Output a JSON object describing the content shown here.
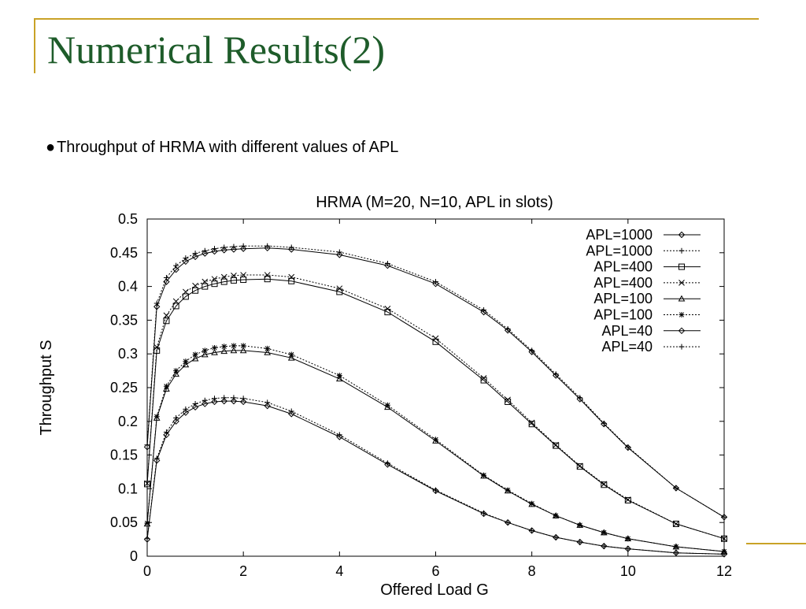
{
  "slide": {
    "title": "Numerical Results(2)",
    "bullet": "Throughput of HRMA with different values of APL",
    "accent_color": "#c9a227",
    "title_color": "#1e5c2a"
  },
  "chart_data": {
    "type": "line",
    "title": "HRMA (M=20, N=10, APL in slots)",
    "xlabel": "Offered Load G",
    "ylabel": "Throughput S",
    "xlim": [
      0,
      12
    ],
    "ylim": [
      0,
      0.5
    ],
    "xticks": [
      "0",
      "2",
      "4",
      "6",
      "8",
      "10",
      "12"
    ],
    "yticks": [
      "0",
      "0.05",
      "0.1",
      "0.15",
      "0.2",
      "0.25",
      "0.3",
      "0.35",
      "0.4",
      "0.45",
      "0.5"
    ],
    "grid": false,
    "legend_position": "top-right",
    "series": [
      {
        "name": "APL=1000",
        "marker": "diamond",
        "dash": "solid",
        "x": [
          0,
          0.2,
          0.4,
          0.6,
          0.8,
          1.0,
          1.2,
          1.4,
          1.6,
          1.8,
          2.0,
          2.5,
          3.0,
          4.0,
          5.0,
          6.0,
          7.0,
          7.5,
          8.0,
          8.5,
          9.0,
          9.5,
          10.0,
          11.0,
          12.0
        ],
        "y": [
          0.162,
          0.37,
          0.407,
          0.425,
          0.437,
          0.444,
          0.449,
          0.452,
          0.454,
          0.455,
          0.456,
          0.457,
          0.455,
          0.447,
          0.431,
          0.404,
          0.362,
          0.335,
          0.303,
          0.268,
          0.233,
          0.196,
          0.161,
          0.101,
          0.058
        ]
      },
      {
        "name": "APL=1000",
        "marker": "plus",
        "dash": "dotted",
        "x": [
          0,
          0.2,
          0.4,
          0.6,
          0.8,
          1.0,
          1.2,
          1.4,
          1.6,
          1.8,
          2.0,
          2.5,
          3.0,
          4.0,
          5.0,
          6.0,
          7.0,
          7.5,
          8.0,
          8.5,
          9.0,
          9.5,
          10.0,
          11.0,
          12.0
        ],
        "y": [
          0.165,
          0.375,
          0.413,
          0.431,
          0.442,
          0.449,
          0.453,
          0.456,
          0.458,
          0.459,
          0.46,
          0.46,
          0.458,
          0.451,
          0.434,
          0.407,
          0.365,
          0.337,
          0.305,
          0.27,
          0.235,
          0.197,
          0.162,
          0.101,
          0.058
        ]
      },
      {
        "name": "APL=400",
        "marker": "square",
        "dash": "solid",
        "x": [
          0,
          0.2,
          0.4,
          0.6,
          0.8,
          1.0,
          1.2,
          1.4,
          1.6,
          1.8,
          2.0,
          2.5,
          3.0,
          4.0,
          5.0,
          6.0,
          7.0,
          7.5,
          8.0,
          8.5,
          9.0,
          9.5,
          10.0,
          11.0,
          12.0
        ],
        "y": [
          0.107,
          0.305,
          0.349,
          0.371,
          0.385,
          0.394,
          0.4,
          0.404,
          0.407,
          0.409,
          0.41,
          0.411,
          0.408,
          0.392,
          0.362,
          0.318,
          0.261,
          0.229,
          0.196,
          0.164,
          0.133,
          0.106,
          0.083,
          0.048,
          0.026
        ]
      },
      {
        "name": "APL=400",
        "marker": "x",
        "dash": "dotted",
        "x": [
          0,
          0.2,
          0.4,
          0.6,
          0.8,
          1.0,
          1.2,
          1.4,
          1.6,
          1.8,
          2.0,
          2.5,
          3.0,
          4.0,
          5.0,
          6.0,
          7.0,
          7.5,
          8.0,
          8.5,
          9.0,
          9.5,
          10.0,
          11.0,
          12.0
        ],
        "y": [
          0.108,
          0.31,
          0.357,
          0.378,
          0.392,
          0.401,
          0.407,
          0.411,
          0.414,
          0.416,
          0.417,
          0.417,
          0.414,
          0.397,
          0.367,
          0.323,
          0.264,
          0.232,
          0.198,
          0.165,
          0.134,
          0.107,
          0.084,
          0.048,
          0.026
        ]
      },
      {
        "name": "APL=100",
        "marker": "triangle",
        "dash": "solid",
        "x": [
          0,
          0.2,
          0.4,
          0.6,
          0.8,
          1.0,
          1.2,
          1.4,
          1.6,
          1.8,
          2.0,
          2.5,
          3.0,
          4.0,
          5.0,
          6.0,
          7.0,
          7.5,
          8.0,
          8.5,
          9.0,
          9.5,
          10.0,
          11.0,
          12.0
        ],
        "y": [
          0.048,
          0.205,
          0.248,
          0.27,
          0.284,
          0.293,
          0.299,
          0.302,
          0.304,
          0.305,
          0.305,
          0.302,
          0.294,
          0.263,
          0.221,
          0.171,
          0.119,
          0.097,
          0.077,
          0.06,
          0.046,
          0.035,
          0.026,
          0.014,
          0.007
        ]
      },
      {
        "name": "APL=100",
        "marker": "asterisk",
        "dash": "dotted",
        "x": [
          0,
          0.2,
          0.4,
          0.6,
          0.8,
          1.0,
          1.2,
          1.4,
          1.6,
          1.8,
          2.0,
          2.5,
          3.0,
          4.0,
          5.0,
          6.0,
          7.0,
          7.5,
          8.0,
          8.5,
          9.0,
          9.5,
          10.0,
          11.0,
          12.0
        ],
        "y": [
          0.049,
          0.207,
          0.252,
          0.275,
          0.289,
          0.299,
          0.305,
          0.309,
          0.311,
          0.312,
          0.312,
          0.308,
          0.299,
          0.268,
          0.224,
          0.173,
          0.12,
          0.098,
          0.078,
          0.06,
          0.046,
          0.035,
          0.026,
          0.014,
          0.007
        ]
      },
      {
        "name": "APL=40",
        "marker": "diamond",
        "dash": "solid",
        "x": [
          0,
          0.2,
          0.4,
          0.6,
          0.8,
          1.0,
          1.2,
          1.4,
          1.6,
          1.8,
          2.0,
          2.5,
          3.0,
          4.0,
          5.0,
          6.0,
          7.0,
          7.5,
          8.0,
          8.5,
          9.0,
          9.5,
          10.0,
          11.0,
          12.0
        ],
        "y": [
          0.025,
          0.142,
          0.18,
          0.2,
          0.213,
          0.221,
          0.226,
          0.229,
          0.23,
          0.23,
          0.229,
          0.223,
          0.211,
          0.177,
          0.136,
          0.097,
          0.063,
          0.05,
          0.038,
          0.028,
          0.021,
          0.015,
          0.011,
          0.005,
          0.003
        ]
      },
      {
        "name": "APL=40",
        "marker": "plus",
        "dash": "dotted",
        "x": [
          0,
          0.2,
          0.4,
          0.6,
          0.8,
          1.0,
          1.2,
          1.4,
          1.6,
          1.8,
          2.0,
          2.5,
          3.0,
          4.0,
          5.0,
          6.0,
          7.0,
          7.5,
          8.0,
          8.5,
          9.0,
          9.5,
          10.0,
          11.0,
          12.0
        ],
        "y": [
          0.026,
          0.145,
          0.184,
          0.205,
          0.218,
          0.226,
          0.231,
          0.234,
          0.235,
          0.235,
          0.234,
          0.228,
          0.215,
          0.18,
          0.138,
          0.098,
          0.064,
          0.05,
          0.038,
          0.028,
          0.021,
          0.015,
          0.011,
          0.005,
          0.003
        ]
      }
    ]
  }
}
